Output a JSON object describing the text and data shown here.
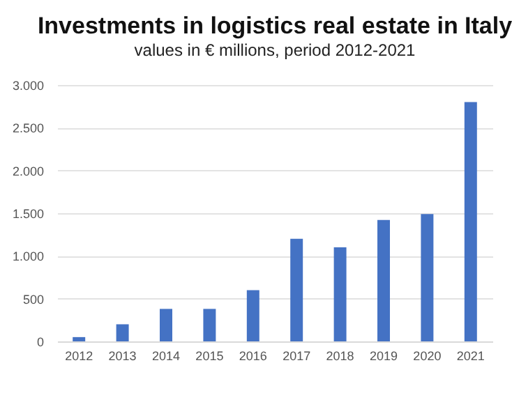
{
  "chart_data": {
    "type": "bar",
    "title": "Investments in logistics real estate in Italy",
    "subtitle": "values in € millions, period 2012-2021",
    "categories": [
      "2012",
      "2013",
      "2014",
      "2015",
      "2016",
      "2017",
      "2018",
      "2019",
      "2020",
      "2021"
    ],
    "values": [
      50,
      200,
      380,
      380,
      600,
      1200,
      1100,
      1420,
      1490,
      2800
    ],
    "color": "#4472c4",
    "ylim": [
      0,
      3000
    ],
    "yticks": [
      0,
      {
        "value": 500,
        "label": "500"
      },
      {
        "value": 1000,
        "label": "1.000"
      },
      {
        "value": 1500,
        "label": "1.500"
      },
      {
        "value": 2000,
        "label": "2.000"
      },
      {
        "value": 2500,
        "label": "2.500"
      },
      {
        "value": 3000,
        "label": "3.000"
      }
    ],
    "grid": "y"
  }
}
